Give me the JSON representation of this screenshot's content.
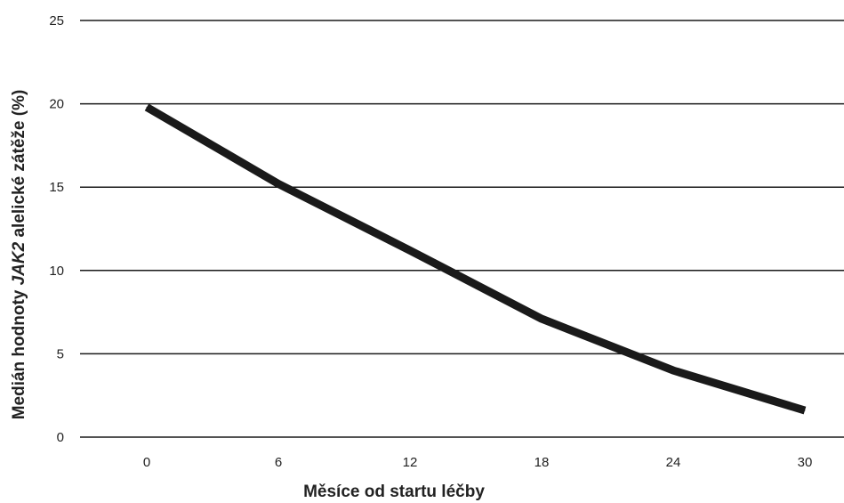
{
  "chart_data": {
    "type": "line",
    "title": "",
    "xlabel": "Měsíce od startu léčby",
    "ylabel": {
      "before": "Medián hodnoty ",
      "italic": "JAK2",
      "after": " alelické zátěže (%)"
    },
    "x": [
      0,
      6,
      12,
      18,
      24,
      30
    ],
    "x_tick_labels": [
      "0",
      "6",
      "12",
      "18",
      "24",
      "30"
    ],
    "y_ticks": [
      0,
      5,
      10,
      15,
      20,
      25
    ],
    "y_tick_labels": [
      "0",
      "5",
      "10",
      "15",
      "20",
      "25"
    ],
    "ylim": [
      0,
      25
    ],
    "grid": true,
    "legend": "none",
    "series": [
      {
        "values": [
          19.8,
          15.2,
          11.2,
          7.1,
          4.0,
          1.6
        ],
        "color": "#1a1a1a"
      }
    ],
    "colors": {
      "gridline": "#1a1a1a",
      "line": "#1a1a1a",
      "text": "#222222"
    }
  }
}
